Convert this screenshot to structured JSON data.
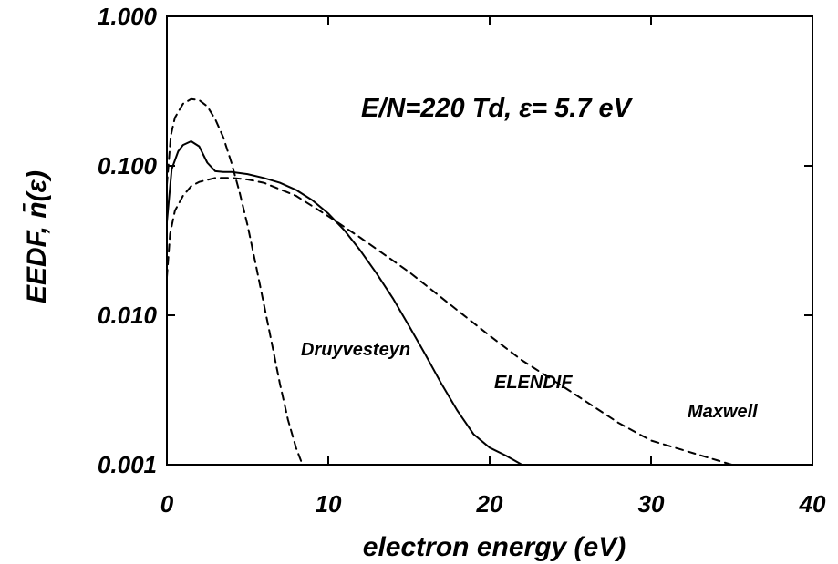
{
  "chart_data": {
    "type": "line",
    "xlabel": "electron energy (eV)",
    "ylabel": "EEDF, n̄(ε)",
    "annotation": "E/N=220 Td, ε= 5.7 eV",
    "xlim": [
      0,
      40
    ],
    "ylim": [
      0.001,
      1.0
    ],
    "yscale": "log",
    "xticks": [
      0,
      10,
      20,
      30,
      40
    ],
    "xtick_labels": [
      "0",
      "10",
      "20",
      "30",
      "40"
    ],
    "yticks": [
      0.001,
      0.01,
      0.1,
      1.0
    ],
    "ytick_labels": [
      "0.001",
      "0.010",
      "0.100",
      "1.000"
    ],
    "grid": false,
    "series": [
      {
        "name": "ELENDIF",
        "style": "solid",
        "x": [
          0,
          0.3,
          0.7,
          1.0,
          1.5,
          2.0,
          2.5,
          3.0,
          3.5,
          4.0,
          5.0,
          6.0,
          7.0,
          8.0,
          9.0,
          10.0,
          11.0,
          12.0,
          13.0,
          14.0,
          15.0,
          16.0,
          17.0,
          18.0,
          19.0,
          20.0,
          21.0,
          22.0
        ],
        "y": [
          0.042,
          0.095,
          0.125,
          0.138,
          0.146,
          0.135,
          0.105,
          0.092,
          0.091,
          0.091,
          0.088,
          0.083,
          0.077,
          0.069,
          0.059,
          0.048,
          0.037,
          0.027,
          0.019,
          0.013,
          0.0085,
          0.0055,
          0.0035,
          0.0023,
          0.0016,
          0.0013,
          0.00115,
          0.001
        ]
      },
      {
        "name": "Druyvesteyn",
        "style": "dashed",
        "x": [
          0,
          0.25,
          0.5,
          1.0,
          1.5,
          2.0,
          2.5,
          3.0,
          3.5,
          4.0,
          4.5,
          5.0,
          5.5,
          6.0,
          6.5,
          7.0,
          7.5,
          8.0,
          8.4
        ],
        "y": [
          0.075,
          0.16,
          0.21,
          0.26,
          0.28,
          0.275,
          0.25,
          0.205,
          0.155,
          0.105,
          0.067,
          0.04,
          0.022,
          0.012,
          0.0065,
          0.0035,
          0.002,
          0.0013,
          0.001
        ]
      },
      {
        "name": "Maxwell",
        "style": "dashed",
        "x": [
          0,
          0.2,
          0.5,
          1.0,
          1.5,
          2.0,
          3.0,
          4.0,
          5.0,
          6.0,
          8.0,
          10.0,
          12.0,
          15.0,
          18.0,
          20.0,
          22.0,
          25.0,
          28.0,
          30.0,
          32.0,
          35.0
        ],
        "y": [
          0.018,
          0.035,
          0.05,
          0.063,
          0.073,
          0.078,
          0.083,
          0.083,
          0.081,
          0.077,
          0.063,
          0.046,
          0.033,
          0.0195,
          0.0108,
          0.0073,
          0.005,
          0.0031,
          0.0019,
          0.00145,
          0.00125,
          0.001
        ]
      }
    ]
  }
}
